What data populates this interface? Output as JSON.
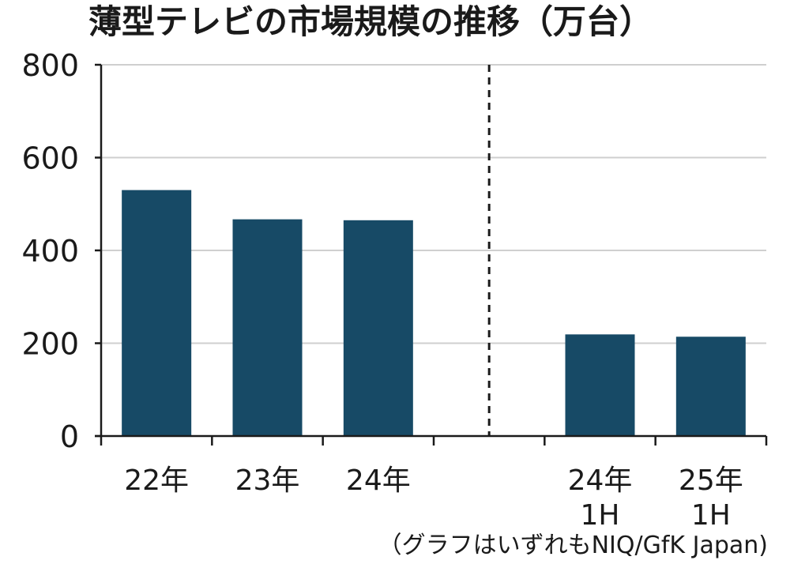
{
  "chart_data": {
    "type": "bar",
    "title": "薄型テレビの市場規模の推移（万台）",
    "categories": [
      [
        "22年"
      ],
      [
        "23年"
      ],
      [
        "24年"
      ],
      [
        "24年",
        "1H"
      ],
      [
        "25年",
        "1H"
      ]
    ],
    "values": [
      530,
      467,
      465,
      219,
      214
    ],
    "ylim": [
      0,
      800
    ],
    "yticks": [
      "0",
      "200",
      "400",
      "600",
      "800"
    ],
    "xlabel": "",
    "ylabel": "",
    "grid": true,
    "bar_color": "#174a66",
    "divider": "dashed line between 24年 and 24年 1H",
    "source_note": "（グラフはいずれもNIQ/GfK Japan)"
  }
}
